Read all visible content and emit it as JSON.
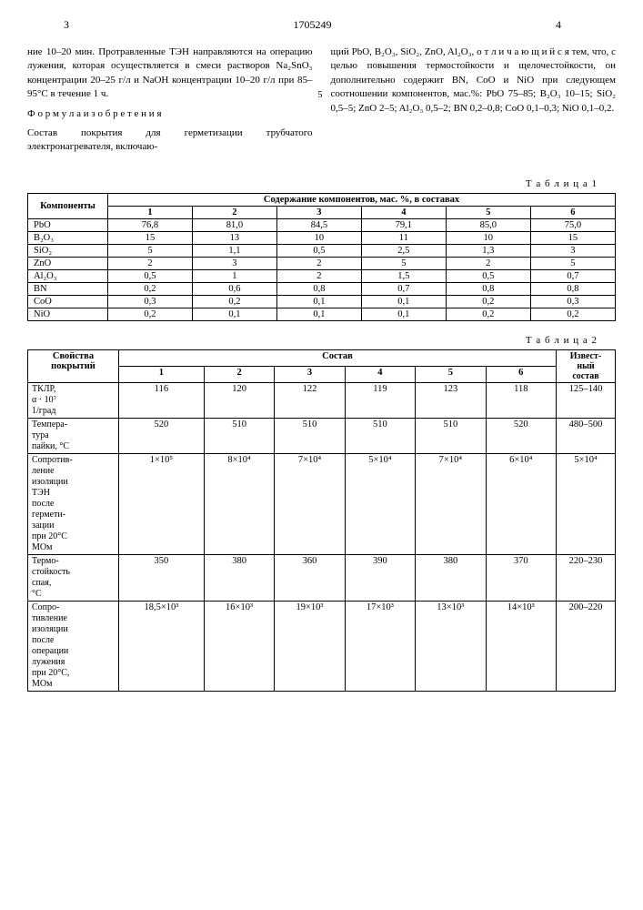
{
  "header": {
    "page_left": "3",
    "doc_id": "1705249",
    "page_right": "4"
  },
  "text": {
    "col1_p1": "ние 10–20 мин. Протравленные ТЭН направляются на операцию лужения, которая осуществляется в смеси растворов Na₂SnO₃ концентрации 20–25 г/л и NaOH концентрации 10–20 г/л при 85–95°С в течение 1 ч.",
    "col1_p2": "Ф о р м у л а  и з о б р е т е н и я",
    "col1_p3": "Состав покрытия для герметизации трубчатого электронагревателя, включаю-",
    "col2_p1": "щий PbO, B₂O₃, SiO₂, ZnO, Al₂O₃, о т л и ч а ю щ и й с я тем, что, с целью повышения термостойкости и щелочестойкости, он дополнительно содержит BN, CoO и NiO при следующем соотношении компонентов, мас.%: PbO 75–85; B₂O₃ 10–15; SiO₂ 0,5–5; ZnO 2–5; Al₂O₃ 0,5–2; BN 0,2–0,8; CoO 0,1–0,3; NiO 0,1–0,2.",
    "line_num_5": "5"
  },
  "table1": {
    "label": "Т а б л и ц а 1",
    "hdr_components": "Компоненты",
    "hdr_content": "Содержание компонентов, мас. %, в составах",
    "cols": [
      "1",
      "2",
      "3",
      "4",
      "5",
      "6"
    ],
    "rows": [
      [
        "PbO",
        "76,8",
        "81,0",
        "84,5",
        "79,1",
        "85,0",
        "75,0"
      ],
      [
        "B₂O₃",
        "15",
        "13",
        "10",
        "11",
        "10",
        "15"
      ],
      [
        "SiO₂",
        "5",
        "1,1",
        "0,5",
        "2,5",
        "1,3",
        "3"
      ],
      [
        "ZnO",
        "2",
        "3",
        "2",
        "5",
        "2",
        "5"
      ],
      [
        "Al₂O₃",
        "0,5",
        "1",
        "2",
        "1,5",
        "0,5",
        "0,7"
      ],
      [
        "BN",
        "0,2",
        "0,6",
        "0,8",
        "0,7",
        "0,8",
        "0,8"
      ],
      [
        "CoO",
        "0,3",
        "0,2",
        "0,1",
        "0,1",
        "0,2",
        "0,3"
      ],
      [
        "NiO",
        "0,2",
        "0,1",
        "0,1",
        "0,1",
        "0,2",
        "0,2"
      ]
    ]
  },
  "table2": {
    "label": "Т а б л и ц а 2",
    "hdr_props": "Свойства покрытий",
    "hdr_comp": "Состав",
    "hdr_known": "Извест-\nный\nсостав",
    "cols": [
      "1",
      "2",
      "3",
      "4",
      "5",
      "6"
    ],
    "rows": [
      [
        "ТКЛР,\nα · 10⁷\n1/град",
        "116",
        "120",
        "122",
        "119",
        "123",
        "118",
        "125–140"
      ],
      [
        "Темпера-\nтура\nпайки, °С",
        "520",
        "510",
        "510",
        "510",
        "510",
        "520",
        "480–500"
      ],
      [
        "Сопротив-\nление\nизоляции\nТЭН\nпосле\nгермети-\nзации\nпри 20°С\nМОм",
        "1×10⁵",
        "8×10⁴",
        "7×10⁴",
        "5×10⁴",
        "7×10⁴",
        "6×10⁴",
        "5×10⁴"
      ],
      [
        "Термо-\nстойкость\nспая,\n°С",
        "350",
        "380",
        "360",
        "390",
        "380",
        "370",
        "220–230"
      ],
      [
        "Сопро-\nтивление\nизоляции\nпосле\nоперации\nлужения\nпри 20°С,\nМОм",
        "18,5×10³",
        "16×10³",
        "19×10³",
        "17×10³",
        "13×10³",
        "14×10³",
        "200–220"
      ]
    ]
  }
}
